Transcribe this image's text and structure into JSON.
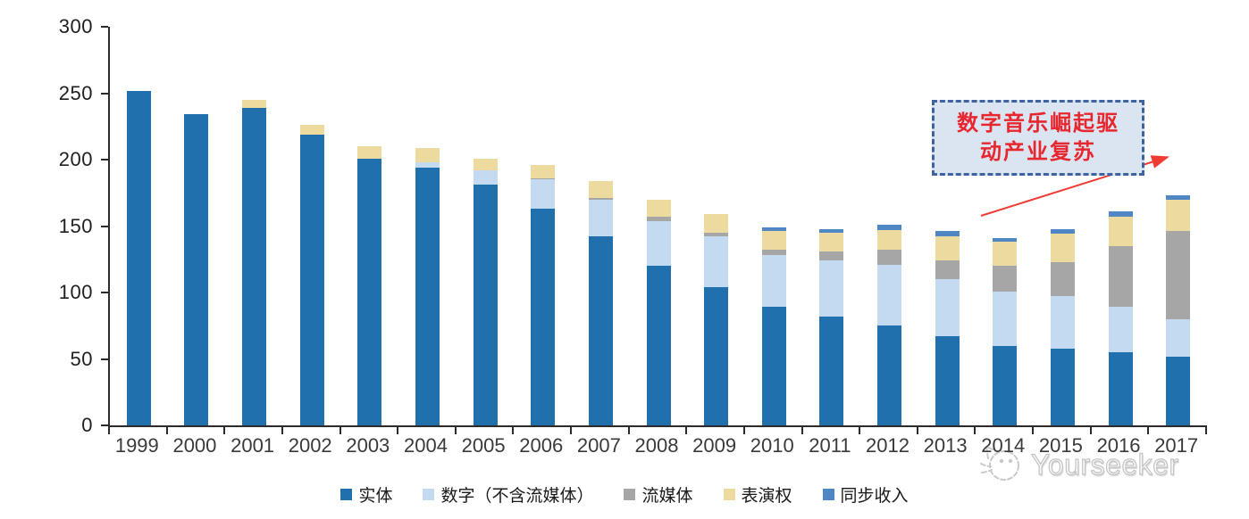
{
  "chart_data": {
    "type": "bar",
    "stacked": true,
    "title": "",
    "categories": [
      "1999",
      "2000",
      "2001",
      "2002",
      "2003",
      "2004",
      "2005",
      "2006",
      "2007",
      "2008",
      "2009",
      "2010",
      "2011",
      "2012",
      "2013",
      "2014",
      "2015",
      "2016",
      "2017"
    ],
    "series": [
      {
        "name": "实体",
        "color": "#2170AE",
        "values": [
          252,
          234,
          239,
          219,
          201,
          194,
          181,
          163,
          142,
          120,
          104,
          89,
          82,
          75,
          67,
          60,
          58,
          55,
          52
        ]
      },
      {
        "name": "数字（不含流媒体）",
        "color": "#C3DAF0",
        "values": [
          0,
          0,
          0,
          0,
          0,
          4,
          11,
          22,
          28,
          34,
          38,
          39,
          42,
          46,
          43,
          41,
          39,
          34,
          28
        ]
      },
      {
        "name": "流媒体",
        "color": "#A6A6A6",
        "values": [
          0,
          0,
          0,
          0,
          0,
          0,
          0,
          1,
          1,
          3,
          3,
          4,
          7,
          11,
          14,
          19,
          26,
          46,
          66
        ]
      },
      {
        "name": "表演权",
        "color": "#EDDA9F",
        "values": [
          0,
          0,
          6,
          7,
          9,
          11,
          9,
          10,
          13,
          13,
          14,
          14,
          14,
          15,
          18,
          18,
          21,
          22,
          24
        ]
      },
      {
        "name": "同步收入",
        "color": "#4E87C4",
        "values": [
          0,
          0,
          0,
          0,
          0,
          0,
          0,
          0,
          0,
          0,
          0,
          3,
          3,
          4,
          4,
          3,
          4,
          4,
          3
        ]
      }
    ],
    "ylim": [
      0,
      300
    ],
    "yticks": [
      "0",
      "50",
      "100",
      "150",
      "200",
      "250",
      "300"
    ],
    "grid": false,
    "legend_position": "bottom",
    "axis_color": "#2b2b2b"
  },
  "annotation": {
    "lines": [
      "数字音乐崛起驱",
      "动产业复苏"
    ],
    "text_color": "#E8262E",
    "box_fill": "#DBE5F2",
    "box_border_color": "#3E639F",
    "arrow_color": "#EF3B33"
  },
  "watermark": {
    "text": "Yourseeker",
    "logo": "cat-face-icon"
  }
}
